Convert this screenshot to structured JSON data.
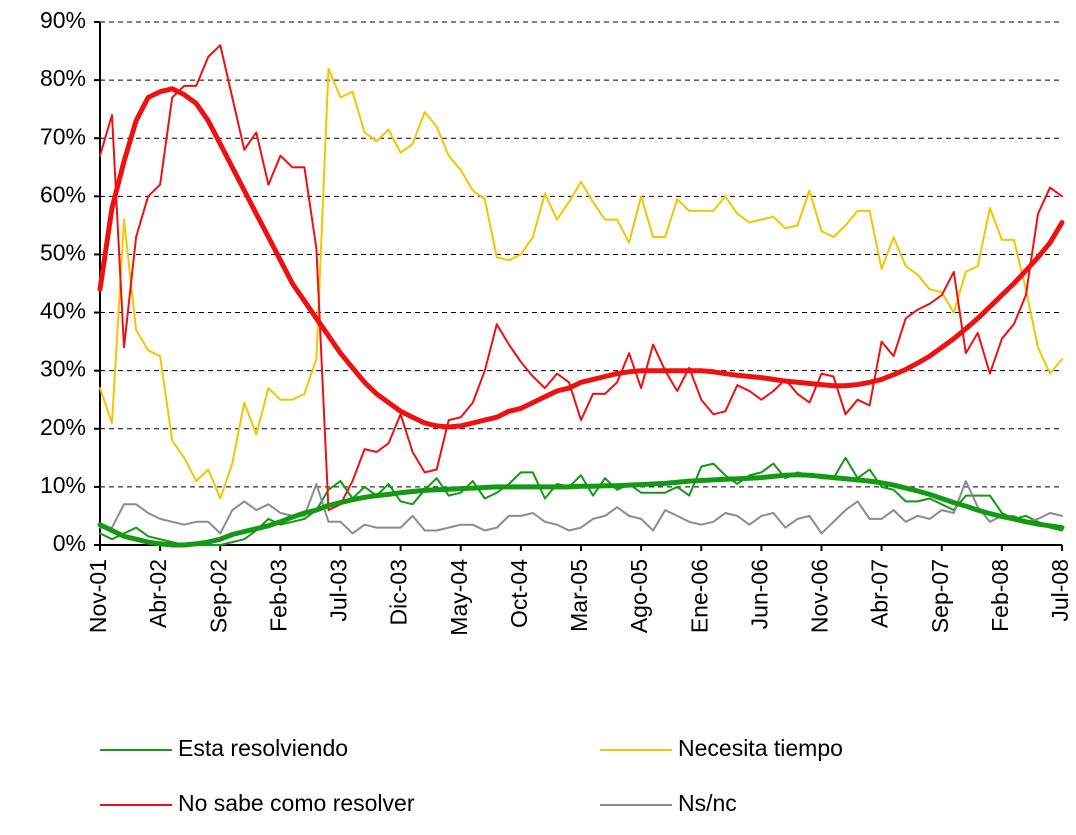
{
  "chart_data": {
    "type": "line",
    "categories": [
      "Nov-01",
      null,
      null,
      null,
      null,
      "Abr-02",
      null,
      null,
      null,
      null,
      "Sep-02",
      null,
      null,
      null,
      null,
      "Feb-03",
      null,
      null,
      null,
      null,
      "Jul-03",
      null,
      null,
      null,
      null,
      "Dic-03",
      null,
      null,
      null,
      null,
      "May-04",
      null,
      null,
      null,
      null,
      "Oct-04",
      null,
      null,
      null,
      null,
      "Mar-05",
      null,
      null,
      null,
      null,
      "Ago-05",
      null,
      null,
      null,
      null,
      "Ene-06",
      null,
      null,
      null,
      null,
      "Jun-06",
      null,
      null,
      null,
      null,
      "Nov-06",
      null,
      null,
      null,
      null,
      "Abr-07",
      null,
      null,
      null,
      null,
      "Sep-07",
      null,
      null,
      null,
      null,
      "Feb-08",
      null,
      null,
      null,
      null,
      "Jul-08"
    ],
    "ylim": [
      0,
      90
    ],
    "yticks": [
      {
        "value": 0,
        "label": "0%"
      },
      {
        "value": 10,
        "label": "10%"
      },
      {
        "value": 20,
        "label": "20%"
      },
      {
        "value": 30,
        "label": "30%"
      },
      {
        "value": 40,
        "label": "40%"
      },
      {
        "value": 50,
        "label": "50%"
      },
      {
        "value": 60,
        "label": "60%"
      },
      {
        "value": 70,
        "label": "70%"
      },
      {
        "value": 80,
        "label": "80%"
      },
      {
        "value": 90,
        "label": "90%"
      }
    ],
    "grid": true,
    "legend": "bottom",
    "series": [
      {
        "name": "Esta resolviendo",
        "color": "#139913",
        "line_width": 2,
        "values": [
          2,
          1,
          2,
          3,
          1.5,
          1,
          0.5,
          0,
          0,
          0,
          0,
          0.5,
          1,
          2.5,
          4.5,
          3.5,
          4,
          4.5,
          6,
          9.5,
          11,
          8,
          10,
          8.5,
          10.5,
          7.5,
          7,
          9.5,
          11.5,
          8.5,
          9,
          11,
          8,
          9,
          10.5,
          12.5,
          12.5,
          8,
          10.5,
          10,
          12,
          8.5,
          11.5,
          9.5,
          10.5,
          9,
          9,
          9,
          10,
          8.5,
          13.5,
          14,
          12,
          10.5,
          12,
          12.5,
          14,
          11.5,
          12.5,
          12,
          11.5,
          11.5,
          15,
          11.5,
          13,
          10,
          9.5,
          7.5,
          7.5,
          8,
          7,
          6,
          8.5,
          8.5,
          8.5,
          5.5,
          4.5,
          5,
          4,
          3,
          2.5
        ]
      },
      {
        "name": "Necesita tiempo",
        "color": "#f7c400",
        "line_width": 2,
        "values": [
          27,
          21,
          56,
          37,
          33.5,
          32.5,
          18,
          15,
          11,
          13,
          8,
          14,
          24.5,
          19,
          27,
          25,
          25,
          26,
          32,
          82,
          77,
          78,
          71,
          69.5,
          71.5,
          67.5,
          69,
          74.5,
          72,
          67,
          64.5,
          61,
          59.5,
          49.5,
          49,
          50,
          53,
          60.5,
          56,
          59,
          62.5,
          59,
          56,
          56,
          52,
          60,
          53,
          53,
          59.5,
          57.5,
          57.5,
          57.5,
          60,
          57,
          55.5,
          56,
          56.5,
          54.5,
          55,
          61,
          54,
          53,
          55,
          57.5,
          57.5,
          47.5,
          53,
          48,
          46.5,
          44,
          43.5,
          40,
          47,
          48,
          58,
          52.5,
          52.5,
          44,
          34,
          29.5,
          32
        ]
      },
      {
        "name": "No sabe como resolver",
        "color": "#ee1111",
        "line_width": 2,
        "values": [
          67,
          74,
          34,
          53,
          60,
          62,
          77,
          79,
          79,
          84,
          86,
          77,
          68,
          71,
          62,
          67,
          65,
          65,
          51,
          6,
          7,
          11,
          16.5,
          16,
          17.5,
          22.5,
          16,
          12.5,
          13,
          21.5,
          22,
          24.5,
          30,
          38,
          34.5,
          31.5,
          29,
          27,
          29.5,
          28,
          21.5,
          26,
          26,
          28,
          33,
          27,
          34.5,
          30,
          26.5,
          30.5,
          25,
          22.5,
          23,
          27.5,
          26.5,
          25,
          26.5,
          28.5,
          26,
          24.5,
          29.5,
          29,
          22.5,
          25,
          24,
          35,
          32.5,
          39,
          40.5,
          41.5,
          43,
          47,
          33,
          36.5,
          29.5,
          35.5,
          38,
          43,
          57,
          61.5,
          60
        ]
      },
      {
        "name": "Ns/nc",
        "color": "#8c8c8c",
        "line_width": 2,
        "values": [
          3,
          3,
          7,
          7,
          5.5,
          4.5,
          4,
          3.5,
          4,
          4,
          2,
          6,
          7.5,
          6,
          7,
          5.5,
          5,
          5,
          10.5,
          4,
          4,
          2,
          3.5,
          3,
          3,
          3,
          5,
          2.5,
          2.5,
          3,
          3.5,
          3.5,
          2.5,
          3,
          5,
          5,
          5.5,
          4,
          3.5,
          2.5,
          3,
          4.5,
          5,
          6.5,
          5,
          4.5,
          2.5,
          6,
          5,
          4,
          3.5,
          4,
          5.5,
          5,
          3.5,
          5,
          5.5,
          3,
          4.5,
          5,
          2,
          4,
          6,
          7.5,
          4.5,
          4.5,
          6,
          4,
          5,
          4.5,
          6,
          5.5,
          11,
          6.5,
          4,
          5,
          5,
          4,
          4.5,
          5.5,
          5
        ]
      },
      {
        "color": "#139913",
        "line_width": 5,
        "values": [
          3.5,
          2.5,
          1.5,
          1,
          0.5,
          0.2,
          0,
          0,
          0.2,
          0.5,
          1,
          1.8,
          2.3,
          2.8,
          3.3,
          4,
          4.8,
          5.5,
          6,
          6.8,
          7.3,
          7.8,
          8.2,
          8.5,
          8.7,
          9,
          9.2,
          9.4,
          9.5,
          9.6,
          9.7,
          9.8,
          9.9,
          10,
          10,
          10,
          10,
          10,
          10,
          10,
          10.1,
          10.1,
          10.2,
          10.2,
          10.3,
          10.4,
          10.5,
          10.6,
          10.8,
          11,
          11.1,
          11.2,
          11.3,
          11.4,
          11.5,
          11.6,
          11.8,
          12,
          12.1,
          12,
          11.8,
          11.6,
          11.4,
          11.2,
          11,
          10.7,
          10.3,
          9.8,
          9.3,
          8.7,
          8,
          7.3,
          6.7,
          6,
          5.4,
          4.9,
          4.5,
          4,
          3.6,
          3.3,
          3
        ]
      },
      {
        "color": "#ee1111",
        "line_width": 5,
        "values": [
          44,
          58,
          66,
          73,
          77,
          78,
          78.5,
          77.5,
          76,
          73,
          69,
          65,
          61,
          57,
          53,
          49,
          45,
          42,
          39,
          36,
          33,
          30.5,
          28,
          26,
          24.5,
          23,
          22,
          21,
          20.5,
          20.3,
          20.5,
          21,
          21.5,
          22,
          23,
          23.5,
          24.5,
          25.5,
          26.5,
          27,
          28,
          28.5,
          29,
          29.5,
          29.8,
          30,
          30,
          30,
          30,
          30,
          30,
          29.8,
          29.5,
          29.2,
          29,
          28.8,
          28.5,
          28.2,
          28,
          27.8,
          27.6,
          27.4,
          27.4,
          27.6,
          28,
          28.5,
          29.3,
          30.2,
          31.3,
          32.5,
          34,
          35.5,
          37.2,
          39,
          41,
          43,
          45,
          47.2,
          49.5,
          52,
          55.5
        ]
      }
    ]
  }
}
